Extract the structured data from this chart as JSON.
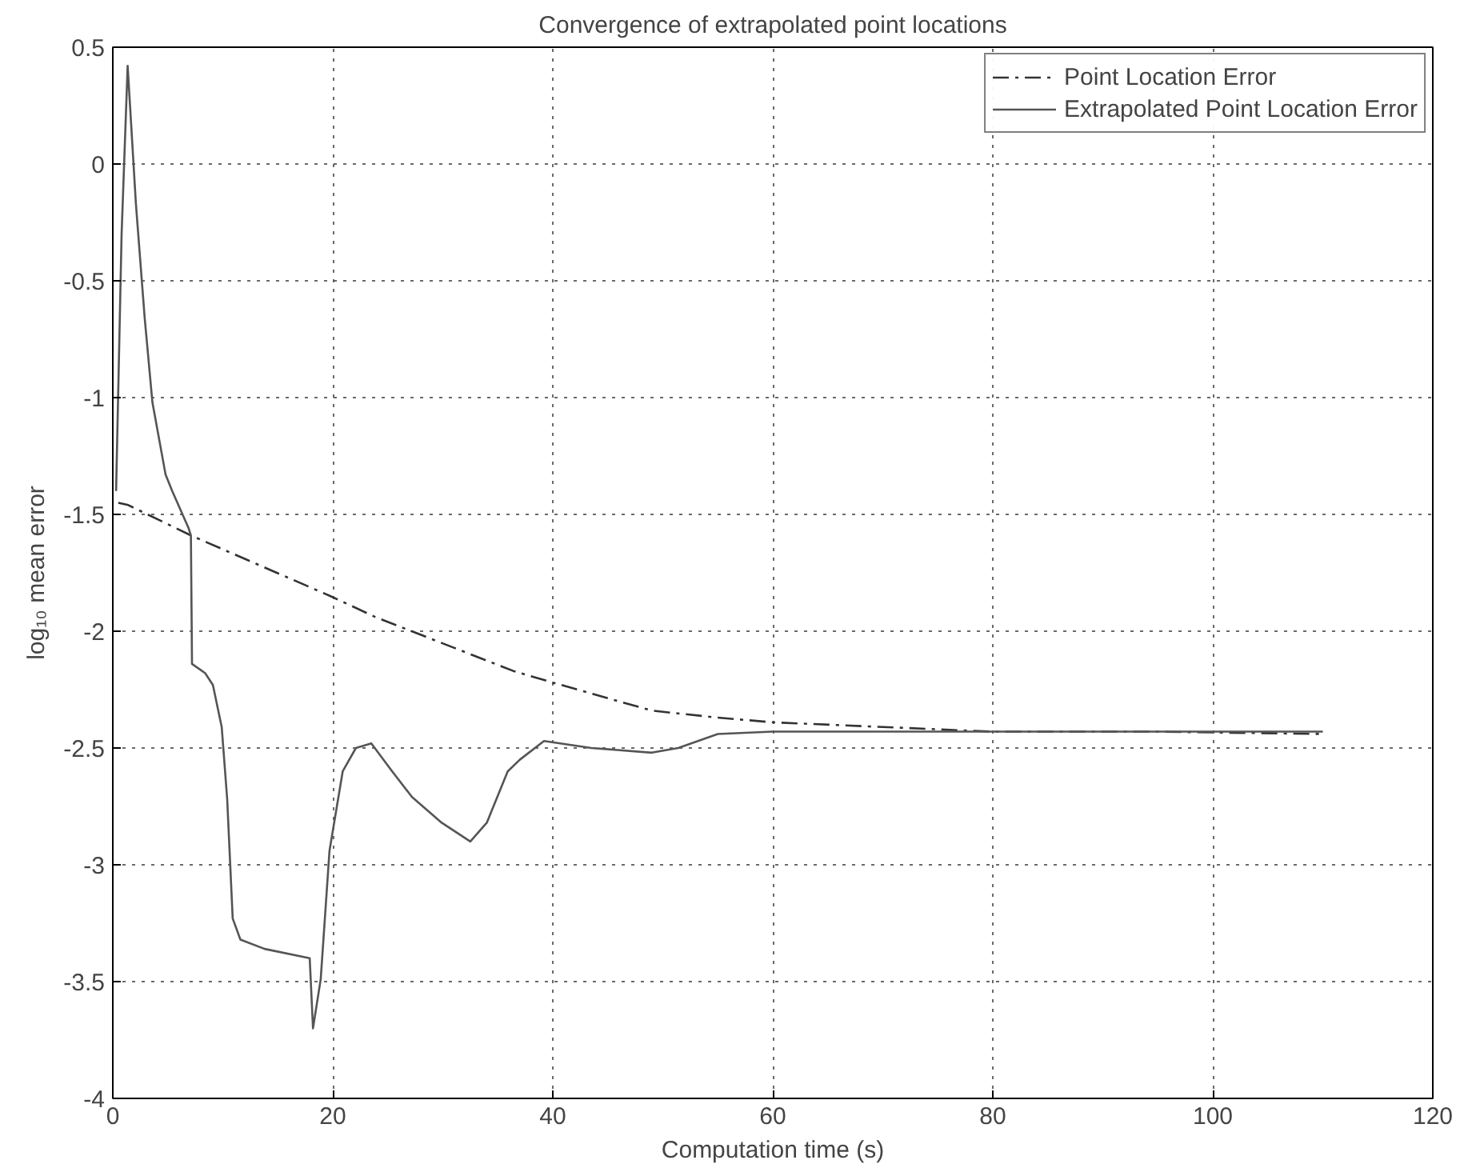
{
  "chart_data": {
    "type": "line",
    "title": "Convergence of extrapolated point locations",
    "xlabel": "Computation time (s)",
    "ylabel": "log₁₀ mean error",
    "xlim": [
      0,
      120
    ],
    "xticks": [
      0,
      20,
      40,
      60,
      80,
      100,
      120
    ],
    "ylim": [
      -4,
      0.5
    ],
    "yticks": [
      -4,
      -3.5,
      -3,
      -2.5,
      -2,
      -1.5,
      -1,
      -0.5,
      0,
      0.5
    ],
    "grid": true,
    "legend": "top right",
    "series": [
      {
        "name": "Point Location Error",
        "color": "#333333",
        "line_style": "dashdot",
        "x": [
          0.5,
          1.4,
          7.1,
          19.8,
          23.9,
          36.4,
          40,
          49,
          55,
          60,
          70,
          80,
          95,
          110
        ],
        "values": [
          -1.45,
          -1.46,
          -1.59,
          -1.85,
          -1.94,
          -2.17,
          -2.22,
          -2.34,
          -2.37,
          -2.39,
          -2.41,
          -2.43,
          -2.43,
          -2.44
        ]
      },
      {
        "name": "Extrapolated Point Location Error",
        "color": "#555555",
        "line_style": "solid",
        "x": [
          0.3,
          0.8,
          1.35,
          2.1,
          2.9,
          3.6,
          4.8,
          5.4,
          6.9,
          7.1,
          7.2,
          8.4,
          9.1,
          9.9,
          10.4,
          10.9,
          11.6,
          13.8,
          17.9,
          18.2,
          18.9,
          19.7,
          20.9,
          22.1,
          23.5,
          25.4,
          27.2,
          29.9,
          32.5,
          34.0,
          35.9,
          37.0,
          39.2,
          43.5,
          49.0,
          51.4,
          55.0,
          60,
          80,
          100,
          110
        ],
        "values": [
          -1.4,
          -0.3,
          0.42,
          -0.17,
          -0.66,
          -1.02,
          -1.33,
          -1.4,
          -1.56,
          -1.59,
          -2.14,
          -2.18,
          -2.23,
          -2.41,
          -2.72,
          -3.23,
          -3.32,
          -3.36,
          -3.4,
          -3.7,
          -3.49,
          -2.94,
          -2.6,
          -2.5,
          -2.48,
          -2.6,
          -2.71,
          -2.82,
          -2.9,
          -2.82,
          -2.6,
          -2.55,
          -2.47,
          -2.5,
          -2.52,
          -2.5,
          -2.44,
          -2.43,
          -2.43,
          -2.43,
          -2.43
        ]
      }
    ]
  }
}
